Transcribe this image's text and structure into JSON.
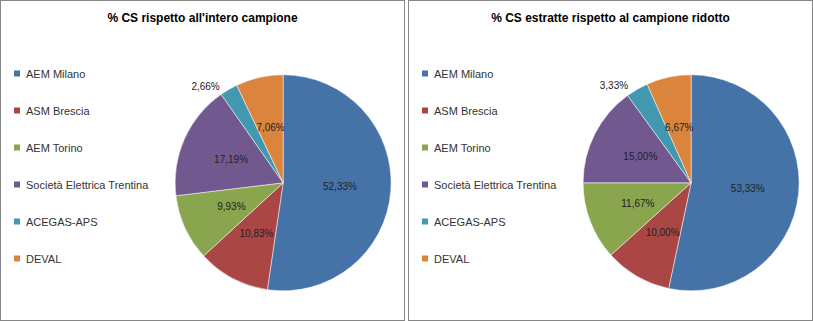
{
  "chart_data": [
    {
      "type": "pie",
      "title": "% CS rispetto all'intero campione",
      "categories": [
        "AEM Milano",
        "ASM Brescia",
        "AEM Torino",
        "Società Elettrica Trentina",
        "ACEGAS-APS",
        "DEVAL"
      ],
      "values": [
        52.33,
        10.83,
        9.93,
        17.19,
        2.66,
        7.06
      ],
      "value_labels": [
        "52,33%",
        "10,83%",
        "9,93%",
        "17,19%",
        "2,66%",
        "7,06%"
      ],
      "colors": [
        "#4572a7",
        "#aa4643",
        "#89a54e",
        "#71588f",
        "#4198af",
        "#db843d"
      ],
      "data_labels": true,
      "legend": "left"
    },
    {
      "type": "pie",
      "title": "% CS estratte rispetto al campione ridotto",
      "categories": [
        "AEM Milano",
        "ASM Brescia",
        "AEM Torino",
        "Società Elettrica Trentina",
        "ACEGAS-APS",
        "DEVAL"
      ],
      "values": [
        53.33,
        10.0,
        11.67,
        15.0,
        3.33,
        6.67
      ],
      "value_labels": [
        "53,33%",
        "10,00%",
        "11,67%",
        "15,00%",
        "3,33%",
        "6,67%"
      ],
      "colors": [
        "#4572a7",
        "#aa4643",
        "#89a54e",
        "#71588f",
        "#4198af",
        "#db843d"
      ],
      "data_labels": true,
      "legend": "left"
    }
  ]
}
